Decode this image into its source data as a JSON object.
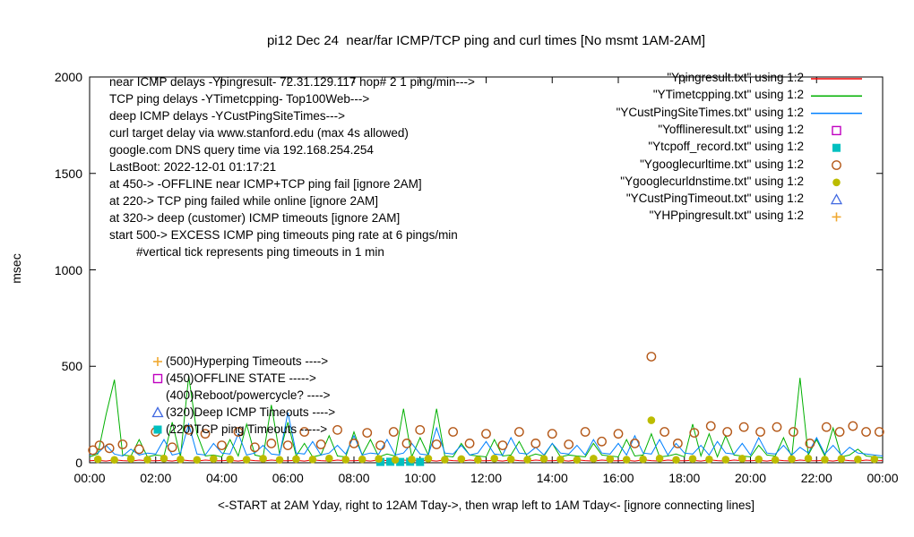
{
  "chart_data": {
    "type": "line",
    "title": "pi12 Dec 24  near/far ICMP/TCP ping and curl times [No msmt 1AM-2AM]",
    "xlabel": "<-START at 2AM Yday, right to 12AM Tday->, then wrap left to 1AM Tday<- [ignore connecting lines]",
    "ylabel": "msec",
    "xlim": [
      0,
      24
    ],
    "ylim": [
      0,
      2000
    ],
    "grid": false,
    "legend_position": "top-right-inside",
    "x_tick_hours": [
      0,
      2,
      4,
      6,
      8,
      10,
      12,
      14,
      16,
      18,
      20,
      22,
      24
    ],
    "x_tick_labels": [
      "00:00",
      "02:00",
      "04:00",
      "06:00",
      "08:00",
      "10:00",
      "12:00",
      "14:00",
      "16:00",
      "18:00",
      "20:00",
      "22:00",
      "00:00"
    ],
    "y_ticks": [
      0,
      500,
      1000,
      1500,
      2000
    ],
    "y_tick_labels": [
      "0",
      "500",
      "1000",
      "1500",
      "2000"
    ],
    "annotations_topleft": [
      "near ICMP delays -Ypingresult- 72.31.129.117 hop# 2 1 ping/min--->",
      "TCP ping delays -YTimetcpping- Top100Web--->",
      "deep ICMP delays -YCustPingSiteTimes--->",
      "curl target delay via www.stanford.edu (max 4s allowed)",
      "google.com DNS query time via 192.168.254.254",
      "LastBoot: 2022-12-01 01:17:21",
      "at 450-> -OFFLINE near ICMP+TCP ping fail [ignore 2AM]",
      "at 220-> TCP ping failed while online [ignore 2AM]",
      "at 320-> deep (customer) ICMP timeouts [ignore 2AM]",
      "start 500-> EXCESS ICMP ping timeouts ping rate at 6 pings/min",
      "        #vertical tick represents ping timeouts in 1 min"
    ],
    "plot_markers": [
      {
        "marker": "plus",
        "color": "#f0a830",
        "label": "(500)Hyperping Timeouts ---->"
      },
      {
        "marker": "square-open",
        "color": "#c000c0",
        "label": "(450)OFFLINE STATE ----->"
      },
      {
        "marker": "none",
        "color": "",
        "label": "(400)Reboot/powercycle? ---->"
      },
      {
        "marker": "triangle-open",
        "color": "#4169e1",
        "label": "(320)Deep ICMP Timeouts ---->"
      },
      {
        "marker": "square-filled",
        "color": "#00c0c0",
        "label": "(220)TCP ping Timeouts ----->"
      }
    ],
    "series": [
      {
        "name": "\"Ypingresult.txt\" using 1:2",
        "style": "line",
        "color": "#ee0000",
        "x_start": 0,
        "x_step": 0.25,
        "values": [
          10,
          13,
          9,
          15,
          11,
          9,
          14,
          10,
          10,
          13,
          9,
          15,
          11,
          9,
          14,
          10,
          10,
          13,
          9,
          15,
          11,
          9,
          14,
          10,
          10,
          13,
          9,
          15,
          11,
          9,
          14,
          10,
          10,
          13,
          9,
          15,
          11,
          9,
          14,
          10,
          10,
          13,
          9,
          15,
          11,
          9,
          14,
          10,
          10,
          13,
          9,
          15,
          11,
          9,
          14,
          10,
          10,
          13,
          9,
          15,
          11,
          9,
          14,
          10,
          10,
          13,
          9,
          15,
          11,
          9,
          14,
          10,
          10,
          13,
          9,
          15,
          11,
          9,
          14,
          10,
          10,
          13,
          9,
          15,
          11,
          9,
          14,
          10,
          10,
          13,
          9,
          15,
          11,
          9,
          14,
          10,
          11
        ]
      },
      {
        "name": "\"YTimetcpping.txt\" using 1:2",
        "style": "line",
        "color": "#00b000",
        "x_start": 0,
        "x_step": 0.25,
        "values": [
          30,
          45,
          250,
          430,
          40,
          35,
          120,
          30,
          40,
          35,
          210,
          30,
          450,
          150,
          35,
          40,
          30,
          120,
          35,
          200,
          40,
          30,
          300,
          45,
          210,
          35,
          100,
          30,
          40,
          140,
          35,
          30,
          160,
          40,
          120,
          30,
          45,
          35,
          280,
          30,
          130,
          40,
          280,
          35,
          30,
          100,
          40,
          35,
          30,
          120,
          35,
          40,
          110,
          30,
          45,
          35,
          100,
          30,
          40,
          35,
          30,
          100,
          40,
          35,
          30,
          120,
          35,
          40,
          150,
          30,
          35,
          45,
          30,
          200,
          35,
          150,
          30,
          140,
          40,
          35,
          30,
          90,
          40,
          35,
          130,
          30,
          440,
          40,
          120,
          35,
          180,
          30,
          40,
          70,
          35,
          30,
          25
        ]
      },
      {
        "name": "\"YCustPingSiteTimes.txt\" using 1:2",
        "style": "line",
        "color": "#0080ff",
        "x_start": 0,
        "x_step": 0.25,
        "values": [
          40,
          50,
          90,
          45,
          35,
          70,
          40,
          50,
          45,
          120,
          40,
          50,
          200,
          45,
          40,
          100,
          50,
          45,
          150,
          40,
          50,
          90,
          45,
          40,
          260,
          50,
          45,
          110,
          40,
          50,
          90,
          45,
          140,
          40,
          50,
          45,
          120,
          40,
          50,
          100,
          45,
          40,
          180,
          50,
          45,
          90,
          40,
          50,
          110,
          45,
          40,
          130,
          50,
          45,
          80,
          40,
          100,
          50,
          45,
          90,
          40,
          120,
          50,
          45,
          100,
          40,
          140,
          50,
          45,
          120,
          40,
          100,
          50,
          45,
          90,
          40,
          110,
          50,
          45,
          100,
          40,
          130,
          50,
          45,
          90,
          40,
          80,
          50,
          130,
          45,
          90,
          40,
          80,
          50,
          45,
          40,
          35
        ]
      },
      {
        "name": "\"Yofflineresult.txt\" using 1:2",
        "style": "square-open",
        "color": "#c000c0",
        "points": []
      },
      {
        "name": "\"Ytcpoff_record.txt\" using 1:2",
        "style": "square-filled",
        "color": "#00c0c0",
        "points": [
          [
            8.8,
            4
          ],
          [
            9.1,
            5
          ],
          [
            9.4,
            4
          ],
          [
            9.7,
            5
          ],
          [
            10.0,
            4
          ]
        ]
      },
      {
        "name": "\"Ygooglecurltime.txt\" using 1:2",
        "style": "circle-open",
        "color": "#b45818",
        "points": [
          [
            0.1,
            65
          ],
          [
            0.3,
            90
          ],
          [
            0.6,
            75
          ],
          [
            1.0,
            95
          ],
          [
            1.5,
            70
          ],
          [
            2.0,
            160
          ],
          [
            2.5,
            80
          ],
          [
            3.0,
            170
          ],
          [
            3.5,
            150
          ],
          [
            4.0,
            90
          ],
          [
            4.5,
            160
          ],
          [
            5.0,
            80
          ],
          [
            5.5,
            100
          ],
          [
            6.0,
            90
          ],
          [
            6.5,
            160
          ],
          [
            7.0,
            95
          ],
          [
            7.5,
            170
          ],
          [
            8.0,
            100
          ],
          [
            8.4,
            155
          ],
          [
            8.8,
            90
          ],
          [
            9.2,
            160
          ],
          [
            9.6,
            100
          ],
          [
            10.0,
            170
          ],
          [
            10.5,
            95
          ],
          [
            11.0,
            160
          ],
          [
            11.5,
            100
          ],
          [
            12.0,
            150
          ],
          [
            12.5,
            90
          ],
          [
            13.0,
            160
          ],
          [
            13.5,
            100
          ],
          [
            14.0,
            150
          ],
          [
            14.5,
            95
          ],
          [
            15.0,
            160
          ],
          [
            15.5,
            110
          ],
          [
            16.0,
            150
          ],
          [
            16.5,
            100
          ],
          [
            17.0,
            550
          ],
          [
            17.4,
            160
          ],
          [
            17.8,
            100
          ],
          [
            18.3,
            155
          ],
          [
            18.8,
            190
          ],
          [
            19.3,
            160
          ],
          [
            19.8,
            185
          ],
          [
            20.3,
            160
          ],
          [
            20.8,
            185
          ],
          [
            21.3,
            160
          ],
          [
            21.8,
            100
          ],
          [
            22.3,
            185
          ],
          [
            22.7,
            160
          ],
          [
            23.1,
            190
          ],
          [
            23.5,
            160
          ],
          [
            23.9,
            160
          ]
        ]
      },
      {
        "name": "\"Ygooglecurldnstime.txt\" using 1:2",
        "style": "circle-filled",
        "color": "#bcbc00",
        "x_start": 0.25,
        "x_step": 0.5,
        "values": [
          18,
          15,
          20,
          16,
          22,
          17,
          15,
          20,
          18,
          16,
          21,
          15,
          19,
          17,
          22,
          16,
          18,
          20,
          15,
          17,
          21,
          16,
          19,
          15,
          22,
          18,
          16,
          20,
          17,
          15,
          21,
          19,
          16,
          18,
          22,
          15,
          20,
          17,
          16,
          21,
          18,
          15,
          19,
          22,
          16,
          20,
          17,
          18
        ],
        "points": [
          [
            17.0,
            220
          ]
        ]
      },
      {
        "name": "\"YCustPingTimeout.txt\" using 1:2",
        "style": "triangle-open",
        "color": "#4169e1",
        "points": []
      },
      {
        "name": "\"YHPpingresult.txt\" using 1:2",
        "style": "plus",
        "color": "#f0a830",
        "points": []
      }
    ]
  }
}
